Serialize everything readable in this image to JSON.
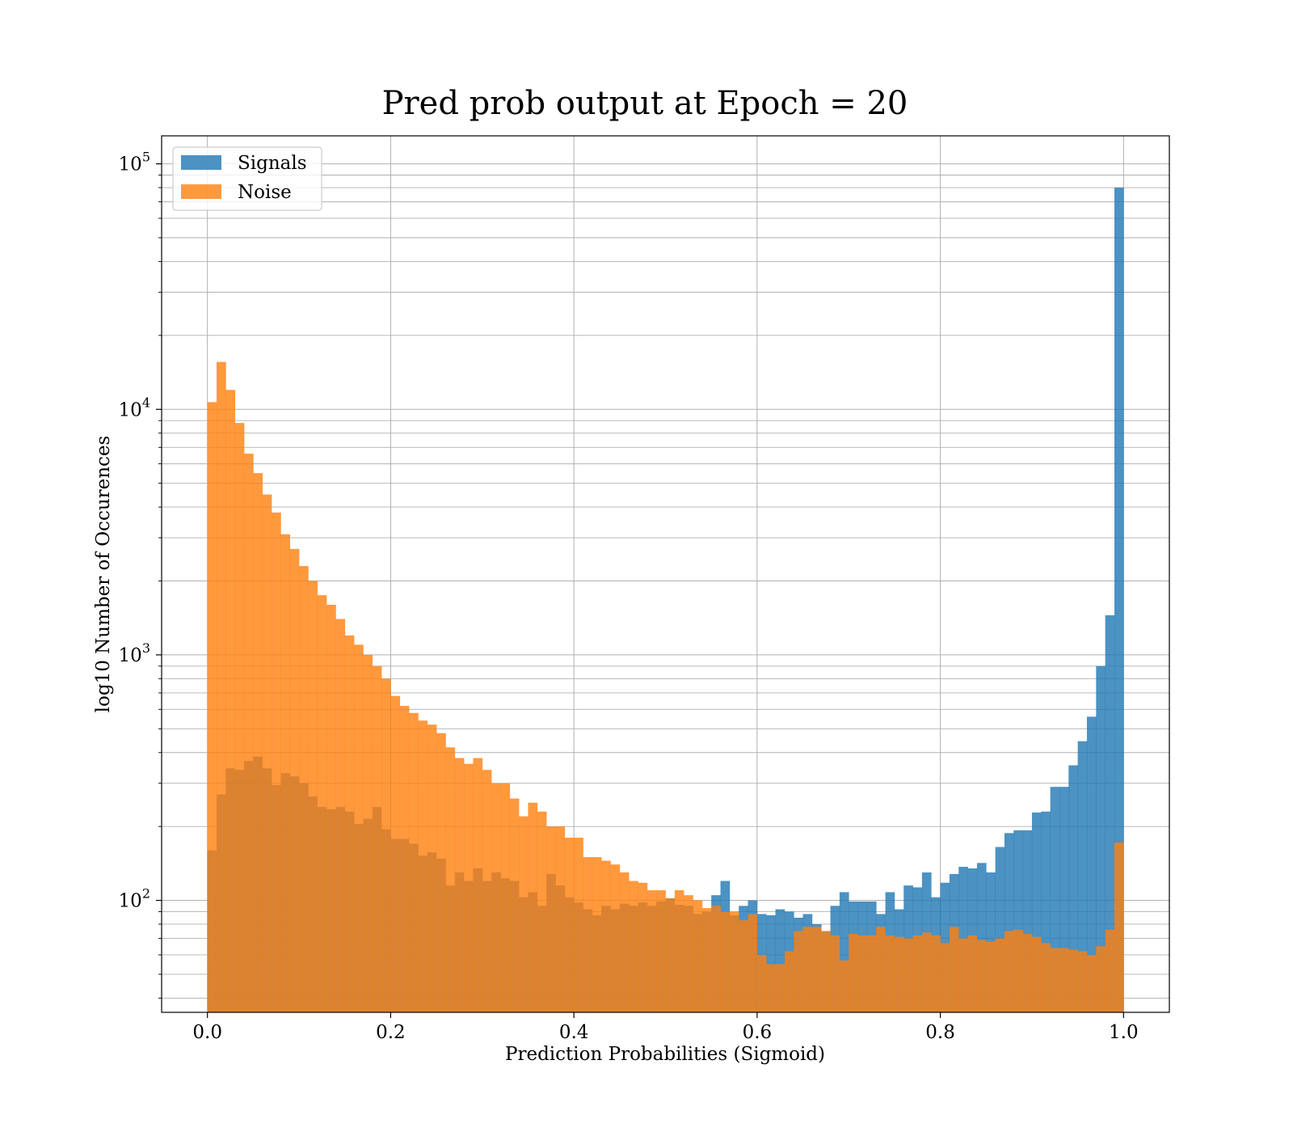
{
  "chart_data": {
    "type": "bar",
    "title": "Pred prob output at Epoch = 20",
    "xlabel": "Prediction Probabilities (Sigmoid)",
    "ylabel": "log10 Number of Occurences",
    "x_scale": "linear",
    "y_scale": "log",
    "xlim": [
      -0.05,
      1.05
    ],
    "ylim": [
      35,
      130000
    ],
    "x_ticks": [
      0.0,
      0.2,
      0.4,
      0.6,
      0.8,
      1.0
    ],
    "x_tick_labels": [
      "0.0",
      "0.2",
      "0.4",
      "0.6",
      "0.8",
      "1.0"
    ],
    "y_ticks": [
      100,
      1000,
      10000,
      100000
    ],
    "y_tick_base": "10",
    "y_tick_exponents": [
      "2",
      "3",
      "4",
      "5"
    ],
    "grid": true,
    "legend": "top-left",
    "bins": {
      "start": 0.0,
      "stop": 1.0,
      "count": 100
    },
    "series": [
      {
        "name": "Signals",
        "color": "#1f77b4",
        "alpha": 0.8,
        "values": [
          160,
          270,
          345,
          340,
          370,
          385,
          345,
          295,
          330,
          320,
          300,
          265,
          240,
          235,
          240,
          230,
          205,
          215,
          240,
          195,
          178,
          178,
          170,
          152,
          157,
          148,
          115,
          130,
          120,
          135,
          120,
          130,
          123,
          120,
          103,
          108,
          95,
          128,
          115,
          103,
          98,
          92,
          87,
          95,
          92,
          97,
          95,
          98,
          95,
          99,
          102,
          96,
          95,
          88,
          90,
          105,
          120,
          87,
          95,
          100,
          88,
          87,
          92,
          90,
          85,
          88,
          80,
          75,
          95,
          108,
          99,
          99,
          99,
          88,
          108,
          92,
          115,
          113,
          130,
          103,
          118,
          128,
          137,
          135,
          142,
          130,
          165,
          188,
          193,
          193,
          228,
          230,
          290,
          290,
          355,
          445,
          560,
          900,
          1450,
          80000
        ]
      },
      {
        "name": "Noise",
        "color": "#ff7f0e",
        "alpha": 0.8,
        "values": [
          10700,
          15600,
          12000,
          8800,
          6600,
          5500,
          4500,
          3800,
          3100,
          2700,
          2300,
          2000,
          1750,
          1600,
          1400,
          1200,
          1100,
          1000,
          900,
          800,
          680,
          620,
          580,
          540,
          520,
          480,
          420,
          380,
          360,
          380,
          340,
          300,
          300,
          260,
          220,
          250,
          230,
          200,
          200,
          180,
          180,
          150,
          150,
          145,
          140,
          130,
          120,
          118,
          110,
          110,
          102,
          110,
          105,
          100,
          93,
          95,
          90,
          90,
          83,
          88,
          60,
          55,
          55,
          62,
          75,
          78,
          78,
          75,
          72,
          57,
          73,
          72,
          72,
          78,
          72,
          71,
          70,
          72,
          74,
          72,
          67,
          78,
          70,
          72,
          69,
          68,
          70,
          75,
          76,
          73,
          71,
          67,
          64,
          64,
          63,
          62,
          60,
          65,
          76,
          172
        ]
      }
    ]
  }
}
